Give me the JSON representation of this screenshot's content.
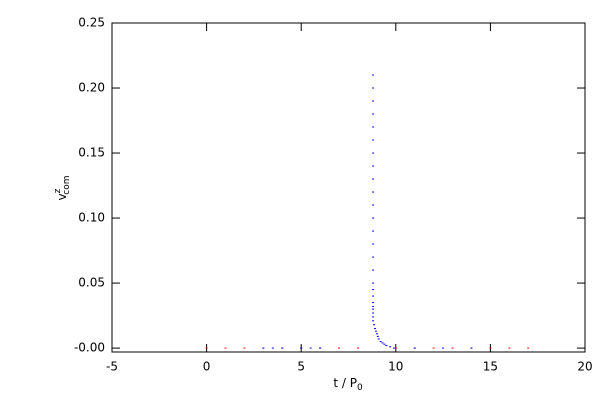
{
  "chart_data": {
    "type": "scatter",
    "x_label": {
      "text": "t / P",
      "sub": "0"
    },
    "y_label": {
      "text": "v",
      "sup": "z",
      "sub": "com"
    },
    "xlim": [
      -5,
      20
    ],
    "xticks": [
      -5,
      0,
      5,
      10,
      15,
      20
    ],
    "ylim": [
      -0.003,
      0.25
    ],
    "yticks": [
      {
        "value": 0,
        "label": "-0.00"
      },
      {
        "value": 0.05,
        "label": "0.05"
      },
      {
        "value": 0.1,
        "label": "0.10"
      },
      {
        "value": 0.15,
        "label": "0.15"
      },
      {
        "value": 0.2,
        "label": "0.20"
      },
      {
        "value": 0.25,
        "label": "0.25"
      }
    ],
    "series": [
      {
        "color": "#ff0000",
        "x": [
          0,
          1,
          2,
          3,
          4,
          5,
          6,
          7,
          8,
          10,
          11,
          12,
          13,
          14,
          15,
          16,
          17
        ],
        "values": [
          0,
          0,
          0,
          0,
          0,
          0,
          0,
          0,
          0,
          0,
          0,
          0,
          0,
          0,
          0,
          0,
          0
        ]
      },
      {
        "color": "#0000ff",
        "x": [
          3,
          3.5,
          4,
          5,
          5.5,
          6,
          8.8,
          8.8,
          8.8,
          8.8,
          8.8,
          8.8,
          8.8,
          8.8,
          8.8,
          8.8,
          8.8,
          8.8,
          8.8,
          8.8,
          8.8,
          8.8,
          8.8,
          8.8,
          8.8,
          8.8,
          8.8,
          8.8,
          8.8,
          8.8,
          8.8,
          8.85,
          8.9,
          8.95,
          9.0,
          9.05,
          9.1,
          9.2,
          9.3,
          9.4,
          9.5,
          9.7,
          9.9,
          11,
          12.5,
          14
        ],
        "values": [
          0,
          0,
          0,
          0,
          0,
          0,
          0.21,
          0.2,
          0.19,
          0.18,
          0.17,
          0.16,
          0.15,
          0.14,
          0.13,
          0.12,
          0.11,
          0.1,
          0.09,
          0.08,
          0.07,
          0.06,
          0.05,
          0.045,
          0.04,
          0.035,
          0.032,
          0.03,
          0.027,
          0.024,
          0.021,
          0.018,
          0.015,
          0.013,
          0.011,
          0.009,
          0.007,
          0.005,
          0.004,
          0.003,
          0.002,
          0.001,
          0,
          0,
          0,
          0
        ]
      }
    ]
  }
}
